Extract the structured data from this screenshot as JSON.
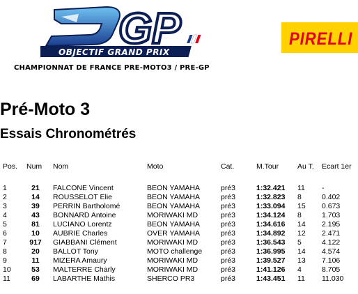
{
  "header": {
    "logo_wordmark": "GP",
    "logo_tagline": "OBJECTIF GRAND PRIX",
    "sponsor": "PIRELLI",
    "championship": "CHAMPIONNAT DE FRANCE PRE-MOTO3 / PRE-GP"
  },
  "colors": {
    "logo_blue": "#1a3d8f",
    "logo_light": "#4aa6e8",
    "sponsor_yellow": "#ffd200",
    "sponsor_red": "#e2001a"
  },
  "title": "Pré-Moto 3",
  "subtitle": "Essais Chronométrés",
  "table": {
    "headers": {
      "pos": "Pos.",
      "num": "Num",
      "nom": "Nom",
      "moto": "Moto",
      "cat": "Cat.",
      "tour": "M.Tour",
      "aut": "Au T.",
      "ecart": "Ecart 1er"
    },
    "rows": [
      {
        "pos": "1",
        "num": "21",
        "nom": "FALCONE Vincent",
        "moto": "BEON YAMAHA",
        "cat": "pré3",
        "tour": "1:32.421",
        "aut": "11",
        "ecart": "-"
      },
      {
        "pos": "2",
        "num": "14",
        "nom": "ROUSSELOT Elie",
        "moto": "BEON YAMAHA",
        "cat": "pré3",
        "tour": "1:32.823",
        "aut": "8",
        "ecart": "0.402"
      },
      {
        "pos": "3",
        "num": "39",
        "nom": "PERRIN Bartholomé",
        "moto": "BEON YAMAHA",
        "cat": "pré3",
        "tour": "1:33.094",
        "aut": "15",
        "ecart": "0.673"
      },
      {
        "pos": "4",
        "num": "43",
        "nom": "BONNARD Antoine",
        "moto": "MORIWAKI MD",
        "cat": "pré3",
        "tour": "1:34.124",
        "aut": "8",
        "ecart": "1.703"
      },
      {
        "pos": "5",
        "num": "81",
        "nom": "LUCIANO Lorentz",
        "moto": "BEON YAMAHA",
        "cat": "pré3",
        "tour": "1:34.616",
        "aut": "14",
        "ecart": "2.195"
      },
      {
        "pos": "6",
        "num": "10",
        "nom": "AUBRIE Charles",
        "moto": "OVER YAMAHA",
        "cat": "pré3",
        "tour": "1:34.892",
        "aut": "12",
        "ecart": "2.471"
      },
      {
        "pos": "7",
        "num": "917",
        "nom": "GIABBANI Clément",
        "moto": "MORIWAKI MD",
        "cat": "pré3",
        "tour": "1:36.543",
        "aut": "5",
        "ecart": "4.122"
      },
      {
        "pos": "8",
        "num": "20",
        "nom": "BALLOT Tony",
        "moto": "MOTO challenge",
        "cat": "pré3",
        "tour": "1:36.995",
        "aut": "14",
        "ecart": "4.574"
      },
      {
        "pos": "9",
        "num": "11",
        "nom": "MIZERA Amaury",
        "moto": "MORIWAKI MD",
        "cat": "pré3",
        "tour": "1:39.527",
        "aut": "13",
        "ecart": "7.106"
      },
      {
        "pos": "10",
        "num": "53",
        "nom": "MALTERRE Charly",
        "moto": "MORIWAKI MD",
        "cat": "pré3",
        "tour": "1:41.126",
        "aut": "4",
        "ecart": "8.705"
      },
      {
        "pos": "11",
        "num": "69",
        "nom": "LABARTHE Mathis",
        "moto": "SHERCO PR3",
        "cat": "pré3",
        "tour": "1:43.451",
        "aut": "11",
        "ecart": "11.030"
      }
    ]
  }
}
